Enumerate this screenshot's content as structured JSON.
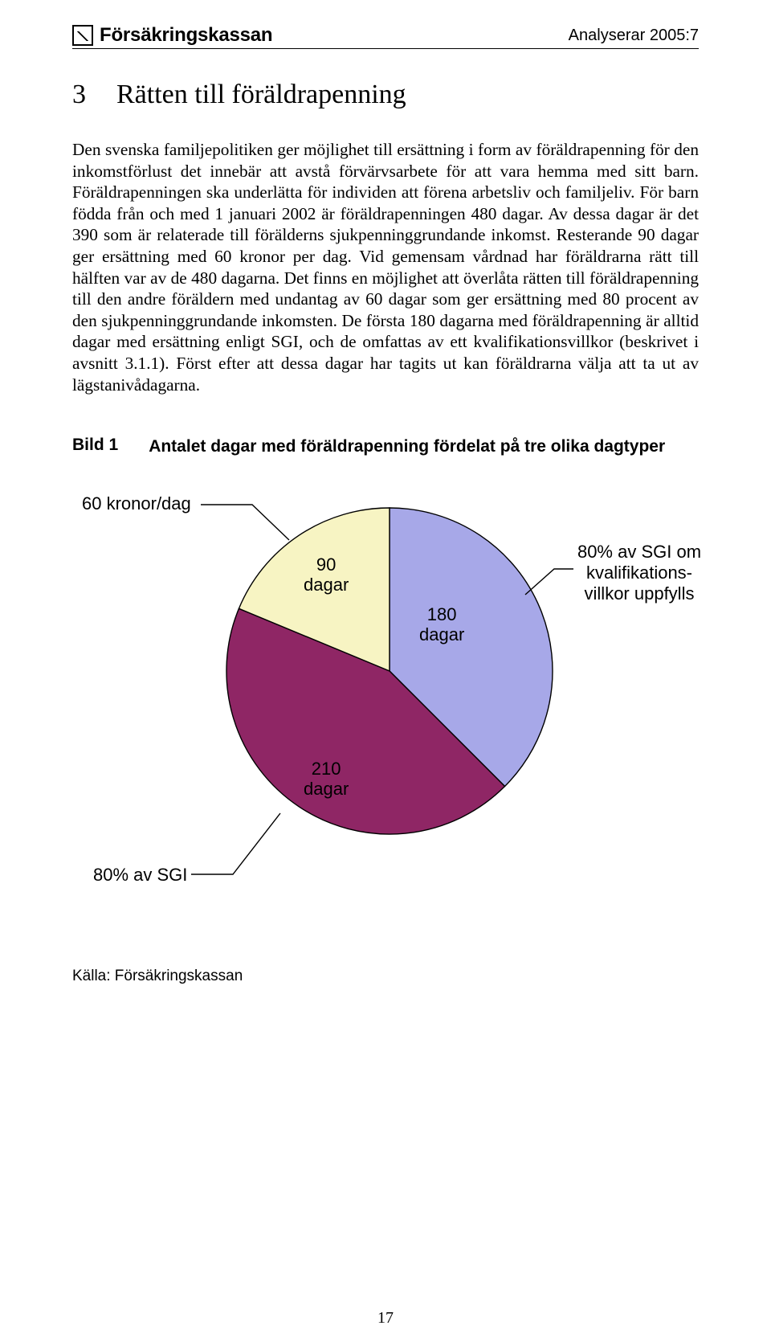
{
  "header": {
    "brand": "Försäkringskassan",
    "doc_ref": "Analyserar 2005:7"
  },
  "chapter": {
    "number": "3",
    "title": "Rätten till föräldrapenning"
  },
  "body": "Den svenska familjepolitiken ger möjlighet till ersättning i form av föräldrapenning för den inkomstförlust det innebär att avstå förvärvsarbete för att vara hemma med sitt barn. Föräldrapenningen ska underlätta för individen att förena arbetsliv och familjeliv. För barn födda från och med 1 januari 2002 är föräldrapenningen 480 dagar. Av dessa dagar är det 390 som är relaterade till förälderns sjukpenninggrundande inkomst. Resterande 90 dagar ger ersättning med 60 kronor per dag. Vid gemensam vårdnad har föräldrarna rätt till hälften var av de 480 dagarna. Det finns en möjlighet att överlåta rätten till föräldrapenning till den andre föräldern med undantag av 60 dagar som ger ersättning med 80 procent av den sjukpenninggrundande inkomsten. De första 180 dagarna med föräldrapenning är alltid dagar med ersättning enligt SGI, och de omfattas av ett kvalifikationsvillkor (beskrivet i avsnitt 3.1.1). Först efter att dessa dagar har tagits ut kan föräldrarna välja att ta ut av lägstanivådagarna.",
  "figure": {
    "label": "Bild 1",
    "caption": "Antalet dagar med föräldrapenning fördelat på tre olika dagtyper"
  },
  "pie_chart": {
    "type": "pie",
    "background_color": "#ffffff",
    "stroke_color": "#000000",
    "stroke_width": 1.4,
    "start_angle_deg": -90,
    "slices": [
      {
        "label_line1": "180",
        "label_line2": "dagar",
        "value": 180,
        "fill": "#a7a8e8",
        "outer_label_line1": "80% av SGI om",
        "outer_label_line2": "kvalifikations-",
        "outer_label_line3": "villkor uppfylls"
      },
      {
        "label_line1": "210",
        "label_line2": "dagar",
        "value": 210,
        "fill": "#8f2665",
        "outer_label_line1": "80% av SGI",
        "outer_label_line2": "",
        "outer_label_line3": ""
      },
      {
        "label_line1": "90",
        "label_line2": "dagar",
        "value": 90,
        "fill": "#f7f4c3",
        "outer_label_line1": "60 kronor/dag",
        "outer_label_line2": "",
        "outer_label_line3": ""
      }
    ],
    "label_font_size": 22,
    "outer_font_size": 22
  },
  "source": "Källa: Försäkringskassan",
  "page_number": "17"
}
